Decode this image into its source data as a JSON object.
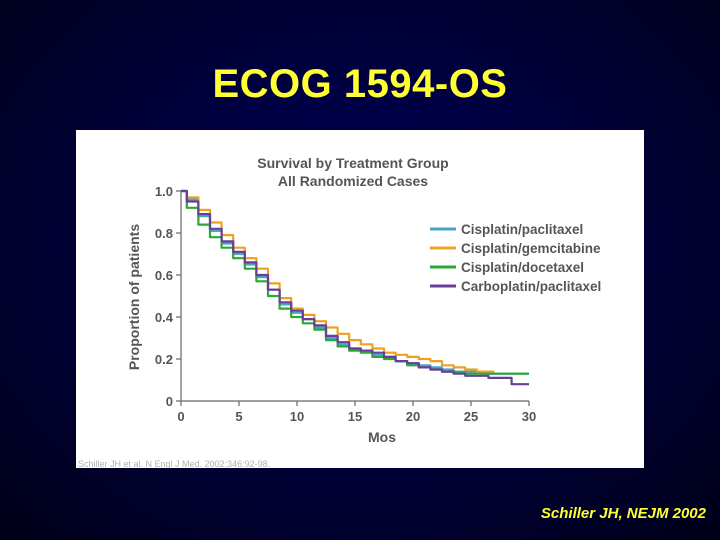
{
  "slide": {
    "title": "ECOG 1594-OS",
    "citation": "Schiller JH, NEJM 2002",
    "footnote": "Schiller JH et al. N Engl J Med. 2002;346:92-98."
  },
  "colors": {
    "background": "#000033",
    "title": "#ffff33",
    "axis": "#666666"
  },
  "chart_data": {
    "type": "line",
    "title": "Survival by Treatment Group",
    "subtitle": "All Randomized Cases",
    "xlabel": "Mos",
    "ylabel": "Proportion of patients",
    "xlim": [
      0,
      30
    ],
    "ylim": [
      0,
      1.0
    ],
    "xticks": [
      0,
      5,
      10,
      15,
      20,
      25,
      30
    ],
    "yticks": [
      "0",
      "0.2",
      "0.4",
      "0.6",
      "0.8",
      "1.0"
    ],
    "grid": false,
    "legend_position": "right",
    "series": [
      {
        "name": "Cisplatin/paclitaxel",
        "color": "#4aa3c8",
        "x": [
          0,
          1,
          2,
          3,
          4,
          5,
          6,
          7,
          8,
          9,
          10,
          11,
          12,
          13,
          14,
          15,
          16,
          17,
          18,
          19,
          20,
          21,
          22,
          23,
          24,
          25,
          26,
          27,
          28,
          29,
          30
        ],
        "y": [
          1.0,
          0.96,
          0.88,
          0.81,
          0.75,
          0.7,
          0.65,
          0.59,
          0.53,
          0.46,
          0.42,
          0.39,
          0.35,
          0.3,
          0.27,
          0.25,
          0.24,
          0.22,
          0.21,
          0.19,
          0.18,
          0.17,
          0.16,
          0.15,
          0.14,
          0.14,
          0.135,
          0.13,
          0.13,
          0.13,
          0.13
        ]
      },
      {
        "name": "Cisplatin/gemcitabine",
        "color": "#f0a020",
        "x": [
          0,
          1,
          2,
          3,
          4,
          5,
          6,
          7,
          8,
          9,
          10,
          11,
          12,
          13,
          14,
          15,
          16,
          17,
          18,
          19,
          20,
          21,
          22,
          23,
          24,
          25,
          26,
          27
        ],
        "y": [
          1.0,
          0.97,
          0.91,
          0.85,
          0.79,
          0.73,
          0.68,
          0.63,
          0.56,
          0.49,
          0.44,
          0.41,
          0.38,
          0.35,
          0.32,
          0.29,
          0.27,
          0.25,
          0.23,
          0.22,
          0.21,
          0.2,
          0.19,
          0.17,
          0.16,
          0.15,
          0.14,
          0.14
        ]
      },
      {
        "name": "Cisplatin/docetaxel",
        "color": "#2aa832",
        "x": [
          0,
          1,
          2,
          3,
          4,
          5,
          6,
          7,
          8,
          9,
          10,
          11,
          12,
          13,
          14,
          15,
          16,
          17,
          18,
          19,
          20,
          21,
          22,
          23,
          24,
          25,
          26,
          27,
          28,
          29,
          30
        ],
        "y": [
          1.0,
          0.92,
          0.84,
          0.78,
          0.73,
          0.68,
          0.63,
          0.57,
          0.5,
          0.44,
          0.4,
          0.37,
          0.34,
          0.29,
          0.26,
          0.24,
          0.23,
          0.21,
          0.2,
          0.19,
          0.17,
          0.16,
          0.15,
          0.14,
          0.135,
          0.13,
          0.13,
          0.13,
          0.13,
          0.13,
          0.13
        ]
      },
      {
        "name": "Carboplatin/paclitaxel",
        "color": "#6a3d9a",
        "x": [
          0,
          1,
          2,
          3,
          4,
          5,
          6,
          7,
          8,
          9,
          10,
          11,
          12,
          13,
          14,
          15,
          16,
          17,
          18,
          19,
          20,
          21,
          22,
          23,
          24,
          25,
          26,
          27,
          28,
          29,
          30
        ],
        "y": [
          1.0,
          0.95,
          0.89,
          0.82,
          0.76,
          0.71,
          0.66,
          0.6,
          0.53,
          0.47,
          0.43,
          0.39,
          0.36,
          0.31,
          0.28,
          0.25,
          0.24,
          0.23,
          0.21,
          0.19,
          0.18,
          0.16,
          0.15,
          0.14,
          0.13,
          0.12,
          0.12,
          0.11,
          0.11,
          0.08,
          0.08
        ]
      }
    ]
  }
}
